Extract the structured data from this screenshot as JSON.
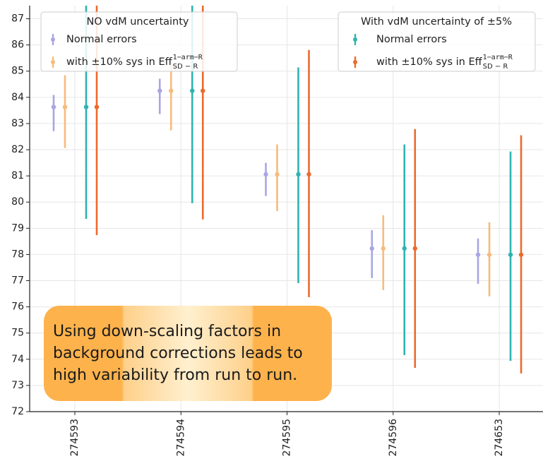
{
  "chart_data": {
    "type": "errorbar",
    "categories": [
      "274593",
      "274594",
      "274595",
      "274596",
      "274653"
    ],
    "ylim": [
      72,
      87.5
    ],
    "yticks": [
      72,
      73,
      74,
      75,
      76,
      77,
      78,
      79,
      80,
      81,
      82,
      83,
      84,
      85,
      86,
      87
    ],
    "grid": true,
    "legend_titles": [
      "NO  vdM uncertainty",
      "With vdM uncertainty of ±5%"
    ],
    "series": [
      {
        "name": "Normal errors",
        "color": "#a9a6e3",
        "values": [
          83.63,
          84.25,
          81.06,
          78.23,
          77.99
        ],
        "err_low": [
          0.92,
          0.89,
          0.83,
          1.13,
          1.11
        ],
        "err_high": [
          0.46,
          0.46,
          0.44,
          0.7,
          0.62
        ]
      },
      {
        "name": "with ±10% sys in Eff",
        "name_sup": "1−arm−R",
        "name_sub": "SD − R",
        "color": "#f7bb7d",
        "values": [
          83.63,
          84.25,
          81.06,
          78.23,
          77.99
        ],
        "err_low": [
          1.57,
          1.51,
          1.4,
          1.59,
          1.59
        ],
        "err_high": [
          1.21,
          1.16,
          1.14,
          1.27,
          1.24
        ]
      },
      {
        "name": "Normal errors",
        "color": "#2fb3b0",
        "values": [
          83.63,
          84.25,
          81.06,
          78.23,
          77.99
        ],
        "err_low": [
          4.27,
          4.29,
          4.15,
          4.07,
          4.05
        ],
        "err_high": [
          3.9,
          3.8,
          4.08,
          3.97,
          3.94
        ]
      },
      {
        "name": "with ±10% sys in Eff",
        "name_sup": "1−arm−R",
        "name_sub": "SD − R",
        "color": "#ec6a2c",
        "values": [
          83.63,
          84.25,
          81.06,
          78.23,
          77.99
        ],
        "err_low": [
          4.89,
          4.91,
          4.69,
          4.56,
          4.53
        ],
        "err_high": [
          4.5,
          4.4,
          4.75,
          4.56,
          4.56
        ]
      }
    ],
    "annotation": [
      "Using down-scaling factors in",
      "background corrections leads to",
      "high variability from run to run."
    ]
  }
}
